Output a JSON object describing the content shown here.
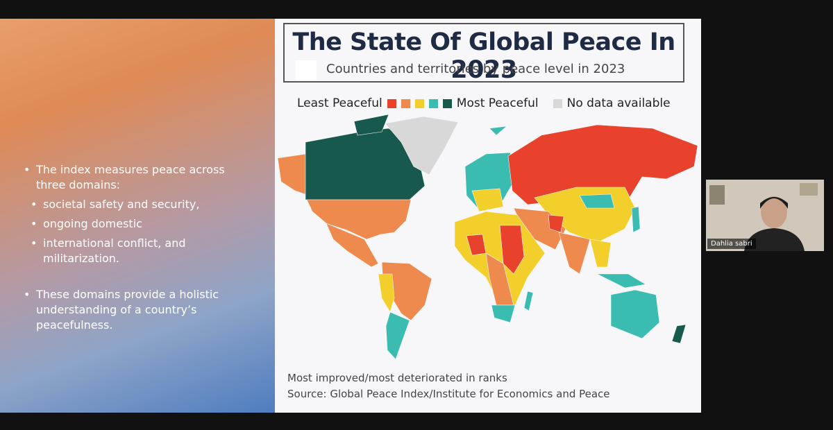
{
  "slide": {
    "bullets": [
      {
        "text": "The index measures peace across three domains:",
        "subitems": [
          "societal safety and security,",
          "ongoing domestic",
          "international conflict, and militarization."
        ]
      },
      {
        "text": "These domains provide a holistic understanding of a country’s peacefulness."
      }
    ]
  },
  "infographic": {
    "title": "The State Of Global Peace In 2023",
    "subtitle": "Countries and territories by peace level in 2023",
    "legend": {
      "least": "Least Peaceful",
      "most": "Most Peaceful",
      "no_data": "No data available"
    },
    "notes": [
      "Most improved/most deteriorated in ranks",
      "Source: Global Peace Index/Institute for Economics and Peace"
    ]
  },
  "participant": {
    "name": "Dahlia sabri"
  }
}
